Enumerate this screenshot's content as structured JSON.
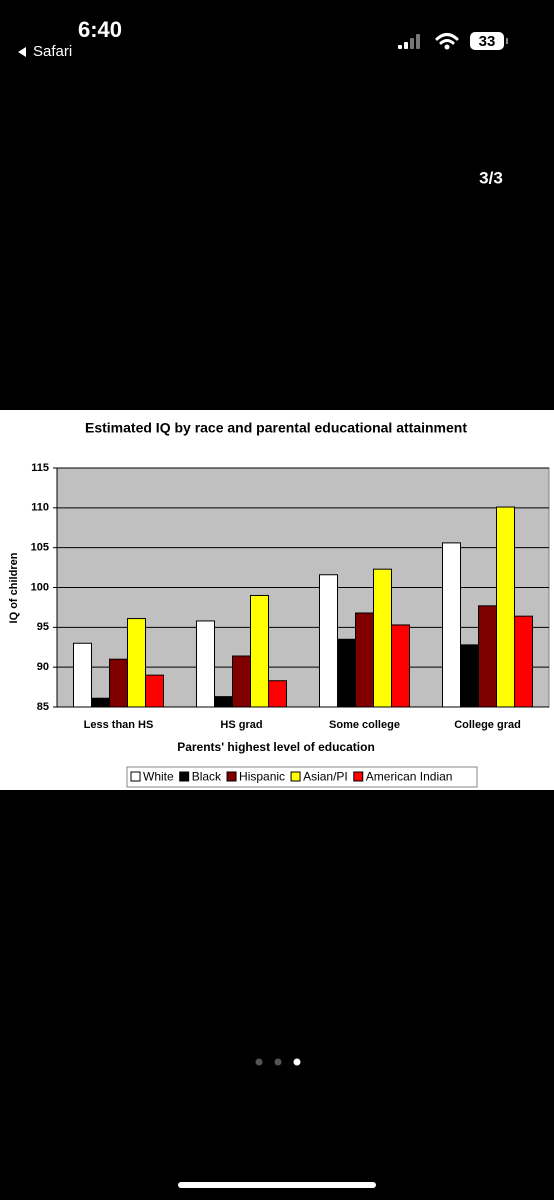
{
  "status_bar": {
    "time": "6:40",
    "back": "Safari",
    "battery": "33"
  },
  "page_indicator": "3/3",
  "chart_data": {
    "type": "bar",
    "title": "Estimated IQ by race and parental educational attainment",
    "x_label": "Parents' highest level of education",
    "y_label": "IQ of children",
    "categories": [
      "Less than HS",
      "HS grad",
      "Some college",
      "College grad"
    ],
    "series": [
      {
        "name": "White",
        "color": "#ffffff",
        "values": [
          93.0,
          95.8,
          101.6,
          105.6
        ]
      },
      {
        "name": "Black",
        "color": "#000000",
        "values": [
          86.1,
          86.3,
          93.5,
          92.8
        ]
      },
      {
        "name": "Hispanic",
        "color": "#800000",
        "values": [
          91.0,
          91.4,
          96.8,
          97.7
        ]
      },
      {
        "name": "Asian/PI",
        "color": "#ffff00",
        "values": [
          96.1,
          99.0,
          102.3,
          110.1
        ]
      },
      {
        "name": "American Indian",
        "color": "#ff0000",
        "values": [
          89.0,
          88.3,
          95.3,
          96.4
        ]
      }
    ],
    "ylim": [
      85,
      115
    ],
    "yticks": [
      85,
      90,
      95,
      100,
      105,
      110,
      115
    ],
    "grid": true,
    "legend": "bottom"
  }
}
